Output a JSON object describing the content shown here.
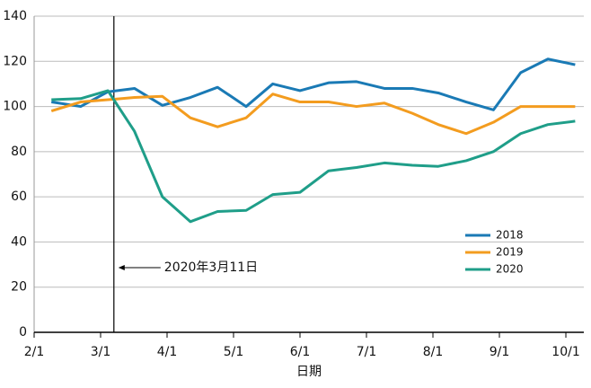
{
  "chart_data": {
    "type": "line",
    "x_label": "日期",
    "x": [
      0.26,
      0.7,
      1.11,
      1.51,
      1.93,
      2.35,
      2.76,
      3.19,
      3.59,
      4.0,
      4.43,
      4.85,
      5.27,
      5.69,
      6.08,
      6.5,
      6.91,
      7.32,
      7.73,
      8.14
    ],
    "series": [
      {
        "name": "2018",
        "color": "#1a7ab5",
        "values": [
          102,
          100,
          106.5,
          108,
          100.5,
          104,
          108.5,
          100,
          110,
          107,
          110.5,
          111,
          108,
          108,
          106,
          102,
          98.5,
          115,
          121,
          118.5
        ]
      },
      {
        "name": "2019",
        "color": "#f39c1f",
        "values": [
          98,
          102,
          103,
          104,
          104.5,
          95,
          91,
          95,
          105.5,
          102,
          102,
          100,
          101.5,
          97,
          92,
          88,
          93,
          100,
          100,
          100
        ]
      },
      {
        "name": "2020",
        "color": "#1f9e89",
        "values": [
          103,
          103.5,
          107,
          89,
          60,
          49,
          53.5,
          54,
          61,
          62,
          71.5,
          73,
          75,
          74,
          73.5,
          76,
          80,
          88,
          92,
          93.5
        ]
      }
    ],
    "xlim": [
      0,
      8.27
    ],
    "xticks": [
      {
        "value": 0,
        "label": "2/1"
      },
      {
        "value": 1,
        "label": "3/1"
      },
      {
        "value": 2,
        "label": "4/1"
      },
      {
        "value": 3,
        "label": "5/1"
      },
      {
        "value": 4,
        "label": "6/1"
      },
      {
        "value": 5,
        "label": "7/1"
      },
      {
        "value": 6,
        "label": "8/1"
      },
      {
        "value": 7,
        "label": "9/1"
      },
      {
        "value": 8,
        "label": "10/1"
      }
    ],
    "ylim": [
      0,
      140
    ],
    "yticks": [
      0,
      20,
      40,
      60,
      80,
      100,
      120,
      140
    ],
    "grid": true,
    "legend": "right",
    "vline": {
      "x": 1.2,
      "label": "2020年3月11日"
    }
  }
}
